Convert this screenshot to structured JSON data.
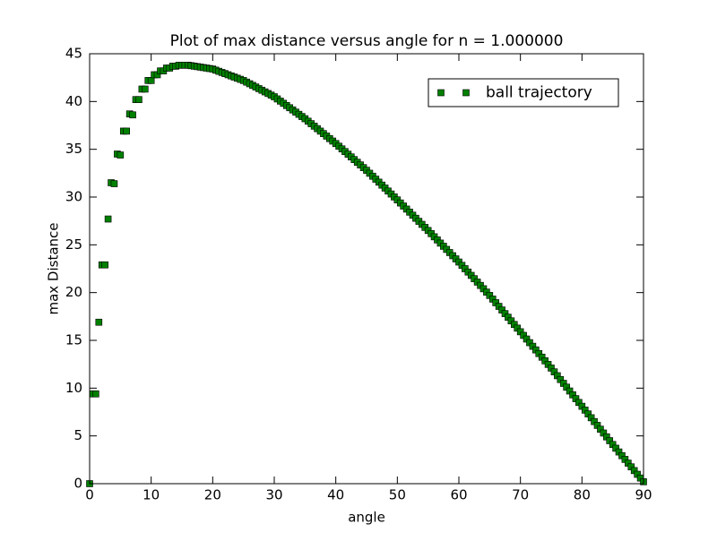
{
  "chart_data": {
    "type": "scatter",
    "title": "Plot of max distance versus angle for n = 1.000000",
    "x_label": "angle",
    "y_label": "max Distance",
    "xlim": [
      0,
      90
    ],
    "ylim": [
      0,
      45
    ],
    "xticks": [
      0,
      10,
      20,
      30,
      40,
      50,
      60,
      70,
      80,
      90
    ],
    "yticks": [
      0,
      5,
      10,
      15,
      20,
      25,
      30,
      35,
      40,
      45
    ],
    "grid": false,
    "legend": "upper right",
    "series": [
      {
        "name": "ball trajectory",
        "color": "#008000",
        "marker": "square",
        "x": [
          0,
          0.5,
          1,
          1.5,
          2,
          2.5,
          3,
          3.5,
          4,
          4.5,
          5,
          5.5,
          6,
          6.5,
          7,
          7.5,
          8,
          8.5,
          9,
          9.5,
          10,
          10.5,
          11,
          11.5,
          12,
          12.5,
          13,
          13.5,
          14,
          14.5,
          15,
          15.5,
          16,
          16.5,
          17,
          17.5,
          18,
          18.5,
          19,
          19.5,
          20,
          20.5,
          21,
          21.5,
          22,
          22.5,
          23,
          23.5,
          24,
          24.5,
          25,
          25.5,
          26,
          26.5,
          27,
          27.5,
          28,
          28.5,
          29,
          29.5,
          30,
          30.5,
          31,
          31.5,
          32,
          32.5,
          33,
          33.5,
          34,
          34.5,
          35,
          35.5,
          36,
          36.5,
          37,
          37.5,
          38,
          38.5,
          39,
          39.5,
          40,
          40.5,
          41,
          41.5,
          42,
          42.5,
          43,
          43.5,
          44,
          44.5,
          45,
          45.5,
          46,
          46.5,
          47,
          47.5,
          48,
          48.5,
          49,
          49.5,
          50,
          50.5,
          51,
          51.5,
          52,
          52.5,
          53,
          53.5,
          54,
          54.5,
          55,
          55.5,
          56,
          56.5,
          57,
          57.5,
          58,
          58.5,
          59,
          59.5,
          60,
          60.5,
          61,
          61.5,
          62,
          62.5,
          63,
          63.5,
          64,
          64.5,
          65,
          65.5,
          66,
          66.5,
          67,
          67.5,
          68,
          68.5,
          69,
          69.5,
          70,
          70.5,
          71,
          71.5,
          72,
          72.5,
          73,
          73.5,
          74,
          74.5,
          75,
          75.5,
          76,
          76.5,
          77,
          77.5,
          78,
          78.5,
          79,
          79.5,
          80,
          80.5,
          81,
          81.5,
          82,
          82.5,
          83,
          83.5,
          84,
          84.5,
          85,
          85.5,
          86,
          86.5,
          87,
          87.5,
          88,
          88.5,
          89,
          89.5,
          90
        ],
        "values": [
          0,
          9.4,
          9.4,
          16.9,
          22.9,
          22.9,
          27.7,
          31.5,
          31.4,
          34.5,
          34.4,
          36.9,
          36.9,
          38.7,
          38.6,
          40.2,
          40.2,
          41.3,
          41.3,
          42.2,
          42.2,
          42.8,
          42.8,
          43.2,
          43.2,
          43.5,
          43.5,
          43.7,
          43.7,
          43.8,
          43.8,
          43.8,
          43.8,
          43.75,
          43.7,
          43.65,
          43.6,
          43.55,
          43.5,
          43.45,
          43.4,
          43.28,
          43.16,
          43.04,
          42.92,
          42.8,
          42.68,
          42.56,
          42.44,
          42.32,
          42.2,
          42.03,
          41.86,
          41.69,
          41.52,
          41.35,
          41.18,
          41.01,
          40.84,
          40.67,
          40.5,
          40.27,
          40.04,
          39.81,
          39.58,
          39.35,
          39.12,
          38.89,
          38.66,
          38.43,
          38.2,
          37.94,
          37.68,
          37.42,
          37.16,
          36.9,
          36.64,
          36.38,
          36.12,
          35.86,
          35.6,
          35.32,
          35.04,
          34.76,
          34.48,
          34.2,
          33.92,
          33.64,
          33.36,
          33.08,
          32.8,
          32.49,
          32.18,
          31.87,
          31.56,
          31.25,
          30.94,
          30.63,
          30.32,
          30.01,
          29.7,
          29.38,
          29.06,
          28.74,
          28.42,
          28.1,
          27.78,
          27.46,
          27.14,
          26.82,
          26.5,
          26.17,
          25.84,
          25.51,
          25.18,
          24.85,
          24.52,
          24.19,
          23.86,
          23.53,
          23.2,
          22.85,
          22.5,
          22.15,
          21.8,
          21.45,
          21.1,
          20.75,
          20.4,
          20.05,
          19.7,
          19.32,
          18.94,
          18.56,
          18.18,
          17.8,
          17.42,
          17.04,
          16.66,
          16.28,
          15.9,
          15.52,
          15.14,
          14.76,
          14.38,
          14.0,
          13.62,
          13.24,
          12.86,
          12.48,
          12.1,
          11.7,
          11.3,
          10.9,
          10.5,
          10.1,
          9.7,
          9.3,
          8.9,
          8.5,
          8.1,
          7.7,
          7.3,
          6.9,
          6.5,
          6.1,
          5.7,
          5.3,
          4.9,
          4.5,
          4.1,
          3.71,
          3.32,
          2.93,
          2.54,
          2.15,
          1.76,
          1.37,
          0.98,
          0.59,
          0.2
        ]
      }
    ]
  }
}
